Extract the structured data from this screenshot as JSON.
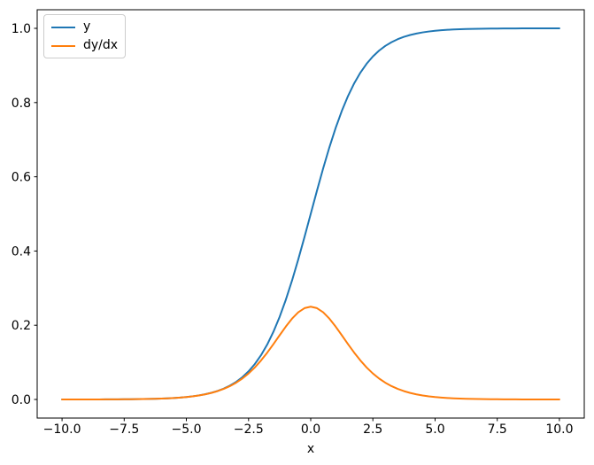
{
  "figure": {
    "background": "#ffffff",
    "frame_color": "#000000"
  },
  "chart_data": {
    "type": "line",
    "title": "",
    "xlabel": "x",
    "ylabel": "",
    "grid": false,
    "xlim": [
      -11,
      11
    ],
    "ylim": [
      -0.05,
      1.05
    ],
    "x_ticks": [
      -10,
      -7.5,
      -5,
      -2.5,
      0,
      2.5,
      5,
      7.5,
      10
    ],
    "x_tick_labels": [
      "−10.0",
      "−7.5",
      "−5.0",
      "−2.5",
      "0.0",
      "2.5",
      "5.0",
      "7.5",
      "10.0"
    ],
    "y_ticks": [
      0,
      0.2,
      0.4,
      0.6,
      0.8,
      1.0
    ],
    "y_tick_labels": [
      "0.0",
      "0.2",
      "0.4",
      "0.6",
      "0.8",
      "1.0"
    ],
    "legend": {
      "position": "upper-left",
      "entries": [
        "y",
        "dy/dx"
      ]
    },
    "x": [
      -10,
      -9.75,
      -9.5,
      -9.25,
      -9,
      -8.75,
      -8.5,
      -8.25,
      -8,
      -7.75,
      -7.5,
      -7.25,
      -7,
      -6.75,
      -6.5,
      -6.25,
      -6,
      -5.75,
      -5.5,
      -5.25,
      -5,
      -4.75,
      -4.5,
      -4.25,
      -4,
      -3.75,
      -3.5,
      -3.25,
      -3,
      -2.75,
      -2.5,
      -2.25,
      -2,
      -1.75,
      -1.5,
      -1.25,
      -1,
      -0.75,
      -0.5,
      -0.25,
      0,
      0.25,
      0.5,
      0.75,
      1,
      1.25,
      1.5,
      1.75,
      2,
      2.25,
      2.5,
      2.75,
      3,
      3.25,
      3.5,
      3.75,
      4,
      4.25,
      4.5,
      4.75,
      5,
      5.25,
      5.5,
      5.75,
      6,
      6.25,
      6.5,
      6.75,
      7,
      7.25,
      7.5,
      7.75,
      8,
      8.25,
      8.5,
      8.75,
      9,
      9.25,
      9.5,
      9.75,
      10
    ],
    "series": [
      {
        "name": "y",
        "color": "#1f77b4",
        "values": [
          0.0,
          0.0001,
          0.0001,
          0.0001,
          0.0001,
          0.0002,
          0.0002,
          0.0003,
          0.0003,
          0.0004,
          0.0006,
          0.0007,
          0.0009,
          0.0012,
          0.0015,
          0.0019,
          0.0025,
          0.0032,
          0.0041,
          0.0052,
          0.0067,
          0.0086,
          0.011,
          0.0141,
          0.018,
          0.023,
          0.0293,
          0.0374,
          0.0474,
          0.0601,
          0.0759,
          0.0953,
          0.1192,
          0.148,
          0.1824,
          0.2227,
          0.2689,
          0.3208,
          0.3775,
          0.4378,
          0.5,
          0.5622,
          0.6225,
          0.6792,
          0.7311,
          0.7773,
          0.8176,
          0.852,
          0.8808,
          0.9047,
          0.9241,
          0.9399,
          0.9526,
          0.9626,
          0.9707,
          0.977,
          0.982,
          0.9859,
          0.989,
          0.9914,
          0.9933,
          0.9948,
          0.9959,
          0.9968,
          0.9975,
          0.9981,
          0.9985,
          0.9988,
          0.9991,
          0.9993,
          0.9994,
          0.9996,
          0.9997,
          0.9997,
          0.9998,
          0.9998,
          0.9999,
          0.9999,
          0.9999,
          0.9999,
          1.0
        ]
      },
      {
        "name": "dy/dx",
        "color": "#ff7f0e",
        "values": [
          0.0,
          0.0001,
          0.0001,
          0.0001,
          0.0001,
          0.0002,
          0.0002,
          0.0003,
          0.0003,
          0.0004,
          0.0006,
          0.0007,
          0.0009,
          0.0012,
          0.0015,
          0.0019,
          0.0025,
          0.0032,
          0.0041,
          0.0052,
          0.0066,
          0.0085,
          0.0109,
          0.0139,
          0.0177,
          0.0225,
          0.0285,
          0.036,
          0.0452,
          0.0565,
          0.0701,
          0.0862,
          0.105,
          0.1261,
          0.1491,
          0.1731,
          0.1966,
          0.2179,
          0.235,
          0.2461,
          0.25,
          0.2461,
          0.235,
          0.2179,
          0.1966,
          0.1731,
          0.1491,
          0.1261,
          0.105,
          0.0862,
          0.0701,
          0.0565,
          0.0452,
          0.036,
          0.0285,
          0.0225,
          0.0177,
          0.0139,
          0.0109,
          0.0085,
          0.0066,
          0.0052,
          0.0041,
          0.0032,
          0.0025,
          0.0019,
          0.0015,
          0.0012,
          0.0009,
          0.0007,
          0.0006,
          0.0004,
          0.0003,
          0.0003,
          0.0002,
          0.0002,
          0.0001,
          0.0001,
          0.0001,
          0.0001,
          0.0
        ]
      }
    ]
  }
}
